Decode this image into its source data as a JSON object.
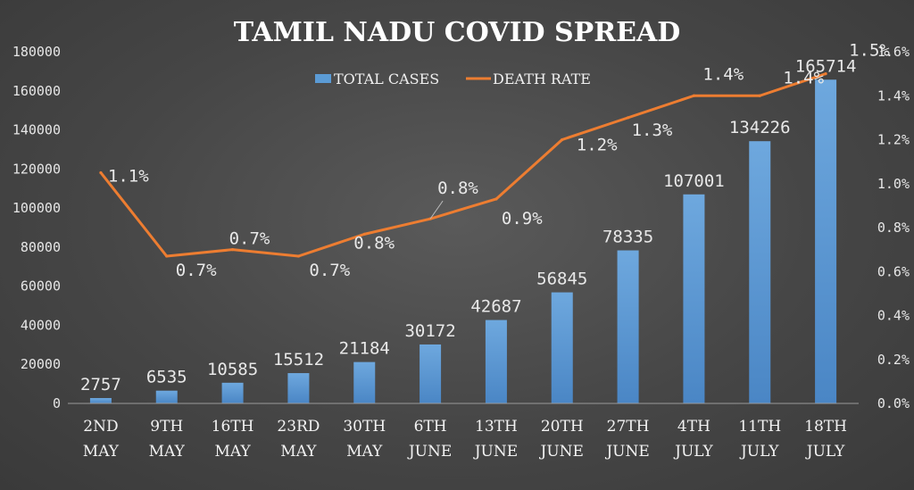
{
  "chart_data": {
    "type": "bar",
    "title": "TAMIL NADU COVID SPREAD",
    "categories": [
      [
        "2ND",
        "MAY"
      ],
      [
        "9TH",
        "MAY"
      ],
      [
        "16TH",
        "MAY"
      ],
      [
        "23RD",
        "MAY"
      ],
      [
        "30TH",
        "MAY"
      ],
      [
        "6TH",
        "JUNE"
      ],
      [
        "13TH",
        "JUNE"
      ],
      [
        "20TH",
        "JUNE"
      ],
      [
        "27TH",
        "JUNE"
      ],
      [
        "4TH",
        "JULY"
      ],
      [
        "11TH",
        "JULY"
      ],
      [
        "18TH",
        "JULY"
      ]
    ],
    "series": [
      {
        "name": "TOTAL CASES",
        "type": "bar",
        "axis": "left",
        "color": "#5b9bd5",
        "values": [
          2757,
          6535,
          10585,
          15512,
          21184,
          30172,
          42687,
          56845,
          78335,
          107001,
          134226,
          165714
        ],
        "labels": [
          "2757",
          "6535",
          "10585",
          "15512",
          "21184",
          "30172",
          "42687",
          "56845",
          "78335",
          "107001",
          "134226",
          "165714"
        ]
      },
      {
        "name": "DEATH RATE",
        "type": "line",
        "axis": "right",
        "color": "#ed7d31",
        "values": [
          1.05,
          0.67,
          0.7,
          0.67,
          0.77,
          0.84,
          0.93,
          1.2,
          1.3,
          1.4,
          1.4,
          1.5
        ],
        "labels": [
          "1.1%",
          "0.7%",
          "0.7%",
          "0.7%",
          "0.8%",
          "0.8%",
          "0.9%",
          "1.2%",
          "1.3%",
          "1.4%",
          "1.4%",
          "1.5%"
        ]
      }
    ],
    "y_left": {
      "min": 0,
      "max": 180000,
      "ticks": [
        "0",
        "20000",
        "40000",
        "60000",
        "80000",
        "100000",
        "120000",
        "140000",
        "160000",
        "180000"
      ]
    },
    "y_right": {
      "min": 0,
      "max": 1.6,
      "ticks": [
        "0.0%",
        "0.2%",
        "0.4%",
        "0.6%",
        "0.8%",
        "1.0%",
        "1.2%",
        "1.4%",
        "1.6%"
      ]
    },
    "legend": {
      "position": "top-center",
      "entries": [
        "TOTAL CASES",
        "DEATH RATE"
      ]
    },
    "grid": false
  }
}
